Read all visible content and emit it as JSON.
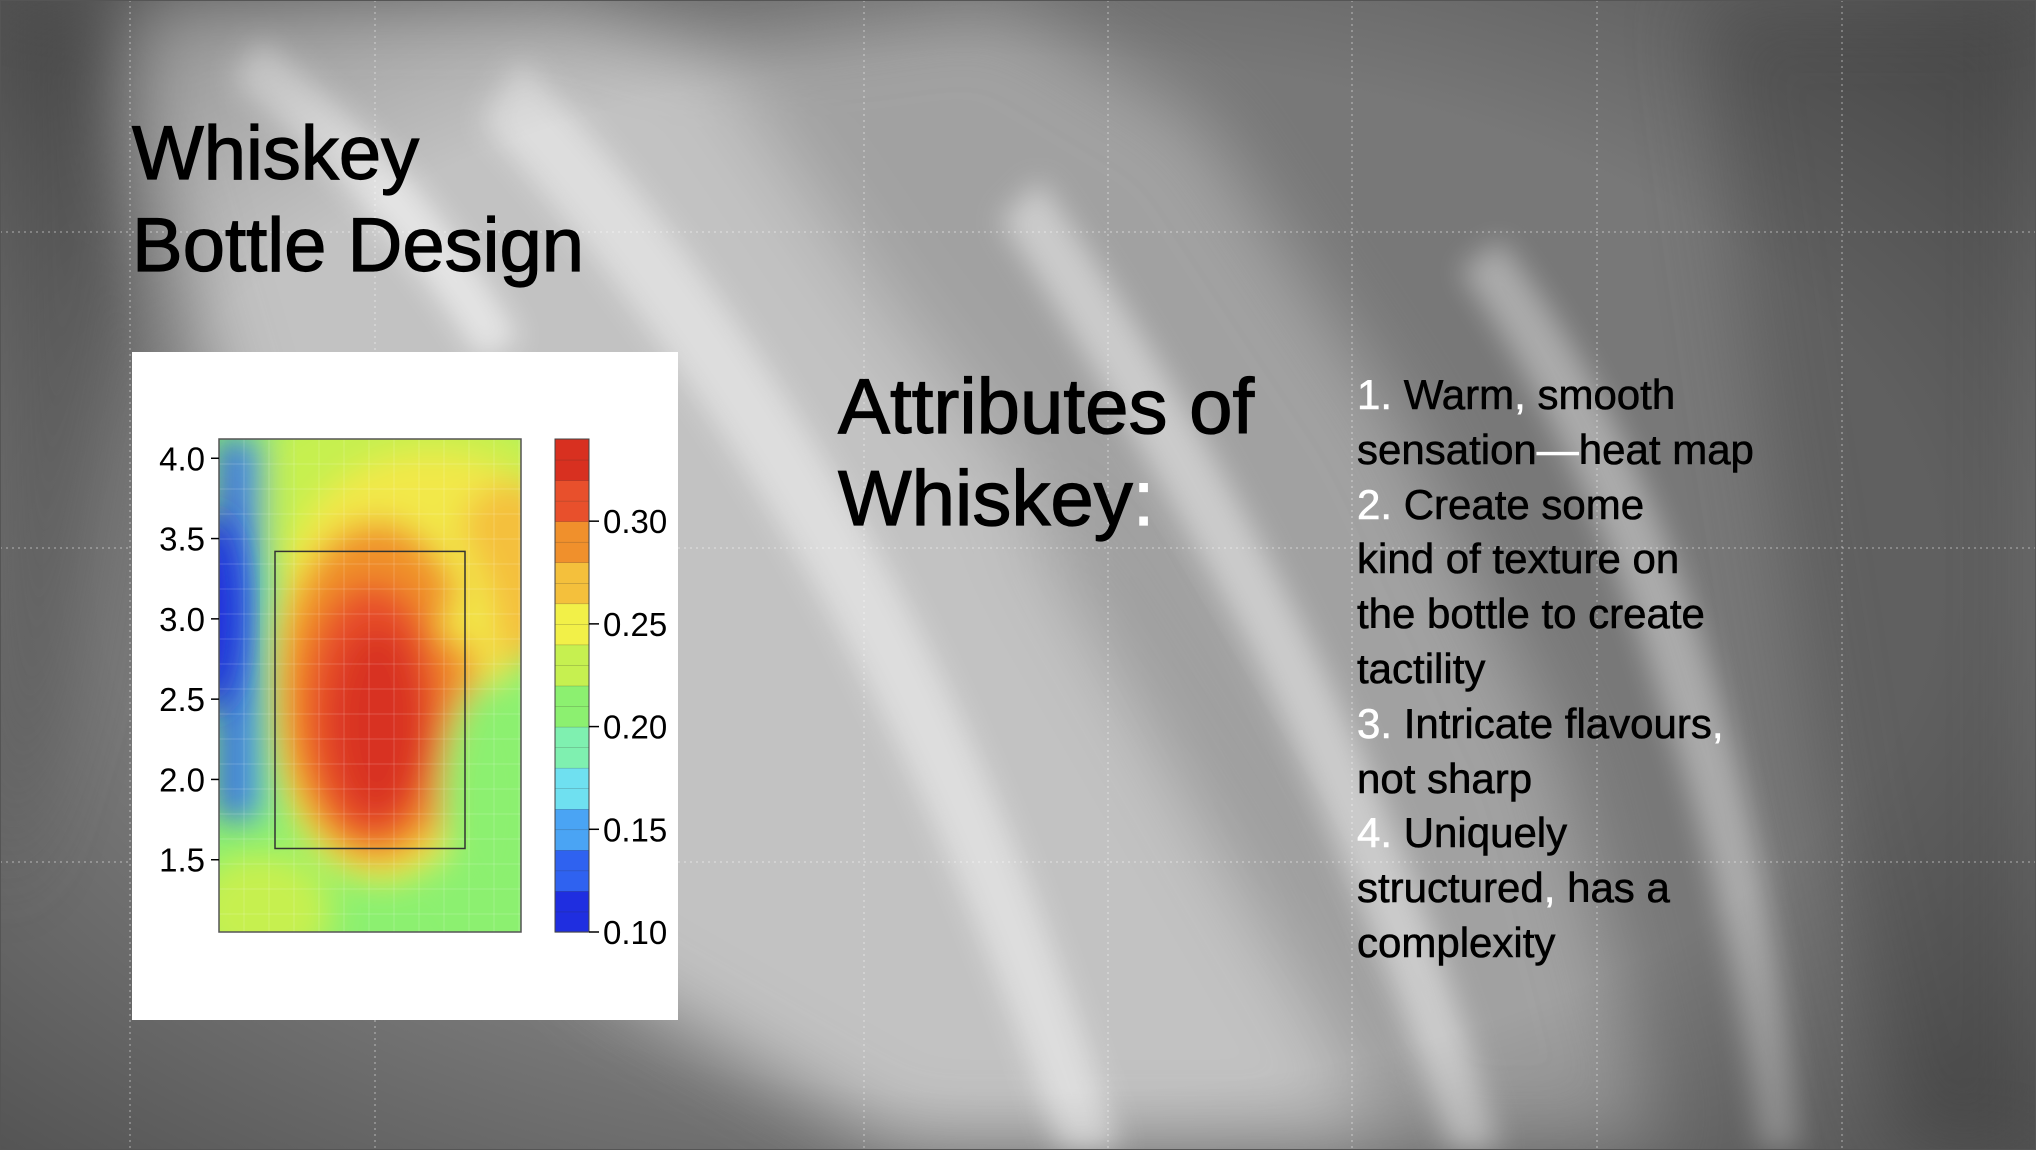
{
  "slide": {
    "title_lines": [
      "Whiskey",
      "Bottle Design"
    ],
    "attributes_heading_lines": [
      "Attributes of",
      "Whiskey"
    ],
    "attributes_heading_colon": ":",
    "attributes": [
      {
        "number": "1.",
        "lines": [
          "Warm, smooth",
          "sensation—heat map"
        ]
      },
      {
        "number": "2.",
        "lines": [
          "Create some",
          "kind of texture on",
          "the bottle to create",
          "tactility"
        ]
      },
      {
        "number": "3.",
        "lines": [
          "Intricate flavours,",
          "not sharp"
        ]
      },
      {
        "number": "4.",
        "lines": [
          "Uniquely",
          "structured, has a",
          "complexity"
        ]
      }
    ]
  },
  "colors": {
    "background_gray": "#7a7a7a",
    "text": "#000000",
    "accent_white": "#ffffff",
    "heatmap_scale": [
      "#1f2ee0",
      "#2f62f0",
      "#4aa4f4",
      "#6fe0f0",
      "#7ff0b0",
      "#8cf070",
      "#c6f050",
      "#f2f048",
      "#f4c03c",
      "#f0902c",
      "#e8502c",
      "#d83020"
    ]
  },
  "chart_data": {
    "type": "heatmap",
    "y_ticks": [
      "4.0",
      "3.5",
      "3.0",
      "2.5",
      "2.0",
      "1.5"
    ],
    "y_tick_values": [
      4.0,
      3.5,
      3.0,
      2.5,
      2.0,
      1.5
    ],
    "ylim": [
      1.05,
      4.12
    ],
    "colorbar_ticks": [
      "0.30",
      "0.25",
      "0.20",
      "0.15",
      "0.10"
    ],
    "colorbar_tick_values": [
      0.3,
      0.25,
      0.2,
      0.15,
      0.1
    ],
    "colorbar_range": [
      0.1,
      0.34
    ],
    "colorbar_levels": 24,
    "grid": true,
    "region_box": {
      "y_range": [
        1.57,
        3.42
      ]
    },
    "hotspot": {
      "y_center": 2.35,
      "value_max": 0.32
    },
    "cold_edge": {
      "side": "left",
      "y_center": 2.85,
      "value_min": 0.1
    }
  }
}
